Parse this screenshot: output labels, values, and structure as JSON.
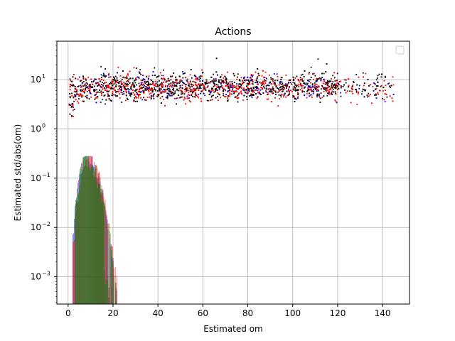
{
  "chart_data": {
    "type": "scatter",
    "title": "Actions",
    "xlabel": "Estimated om",
    "ylabel": "Estimated std/abs(om)",
    "xscale": "linear",
    "yscale": "log",
    "xlim": [
      -5,
      152
    ],
    "ylim": [
      0.00028,
      60
    ],
    "grid": true,
    "legend": {
      "placement": "top-right",
      "entries": []
    },
    "x_ticks": [
      {
        "value": 0,
        "label": "0"
      },
      {
        "value": 20,
        "label": "20"
      },
      {
        "value": 40,
        "label": "40"
      },
      {
        "value": 60,
        "label": "60"
      },
      {
        "value": 80,
        "label": "80"
      },
      {
        "value": 100,
        "label": "100"
      },
      {
        "value": 120,
        "label": "120"
      },
      {
        "value": 140,
        "label": "140"
      }
    ],
    "y_ticks": [
      {
        "value": 0.001,
        "base": "10",
        "exp": "−3"
      },
      {
        "value": 0.01,
        "base": "10",
        "exp": "−2"
      },
      {
        "value": 0.1,
        "base": "10",
        "exp": "−1"
      },
      {
        "value": 1,
        "base": "10",
        "exp": "0"
      },
      {
        "value": 10,
        "base": "10",
        "exp": "1"
      }
    ],
    "scatter_band": {
      "series_colors": [
        "#000000",
        "#0000ff",
        "#ff0000"
      ],
      "x_range": [
        0.5,
        145
      ],
      "x_dense_until": 120,
      "y_center": 7,
      "y_center_low_x": 4.5,
      "y_min": 1.8,
      "y_max": 35
    },
    "histograms": {
      "series": [
        {
          "color": "#0000ff",
          "opacity": 0.55,
          "peak_x": 8,
          "peak_y": 0.26,
          "x_min": 2,
          "x_max": 24
        },
        {
          "color": "#ff0000",
          "opacity": 0.6,
          "peak_x": 8.5,
          "peak_y": 0.27,
          "x_min": 2,
          "x_max": 33
        },
        {
          "color": "#008000",
          "opacity": 0.75,
          "peak_x": 8,
          "peak_y": 0.25,
          "x_min": 3,
          "x_max": 28
        }
      ]
    }
  }
}
